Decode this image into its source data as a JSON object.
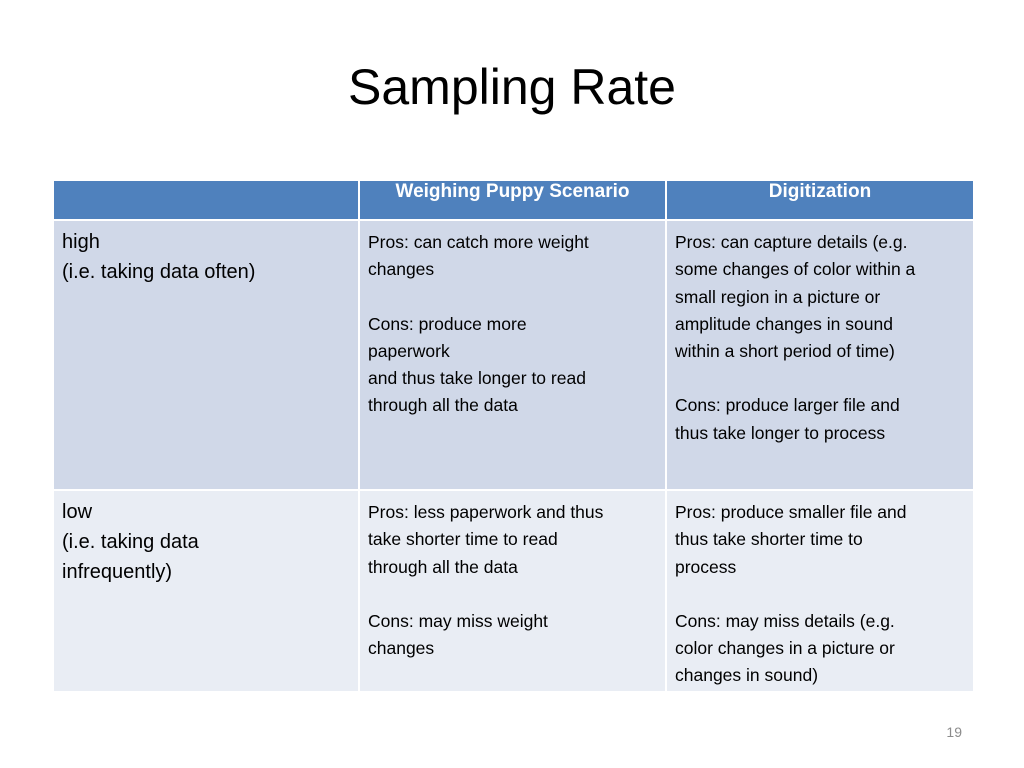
{
  "slide": {
    "title": "Sampling Rate",
    "page_number": "19"
  },
  "table": {
    "headers": [
      "",
      "Weighing Puppy Scenario",
      "Digitization"
    ],
    "rows": [
      {
        "label_lines": [
          "high",
          "(i.e. taking data often)"
        ],
        "puppy_lines": [
          "Pros: can catch more weight",
          "changes",
          "",
          "Cons: produce more",
          "paperwork",
          "and thus take longer to read",
          "through all the data"
        ],
        "digitization_lines": [
          "Pros: can capture details (e.g.",
          "some changes of color within a",
          "small region in a picture or",
          "amplitude changes in sound",
          "within a short period of time)",
          "",
          "Cons: produce larger file and",
          "thus take longer to process"
        ]
      },
      {
        "label_lines": [
          "low",
          "(i.e. taking data",
          "infrequently)"
        ],
        "puppy_lines": [
          "Pros: less paperwork and thus",
          "take shorter time to read",
          "through all the data",
          "",
          "Cons: may miss weight",
          "changes"
        ],
        "digitization_lines": [
          "Pros: produce smaller file and",
          "thus take shorter time to",
          "process",
          "",
          "Cons: may miss details (e.g.",
          "color changes in a picture or",
          "changes in sound)"
        ]
      }
    ]
  },
  "colors": {
    "header_bg": "#4f81bd",
    "row_high_bg": "#d0d8e8",
    "row_low_bg": "#e9edf4"
  }
}
